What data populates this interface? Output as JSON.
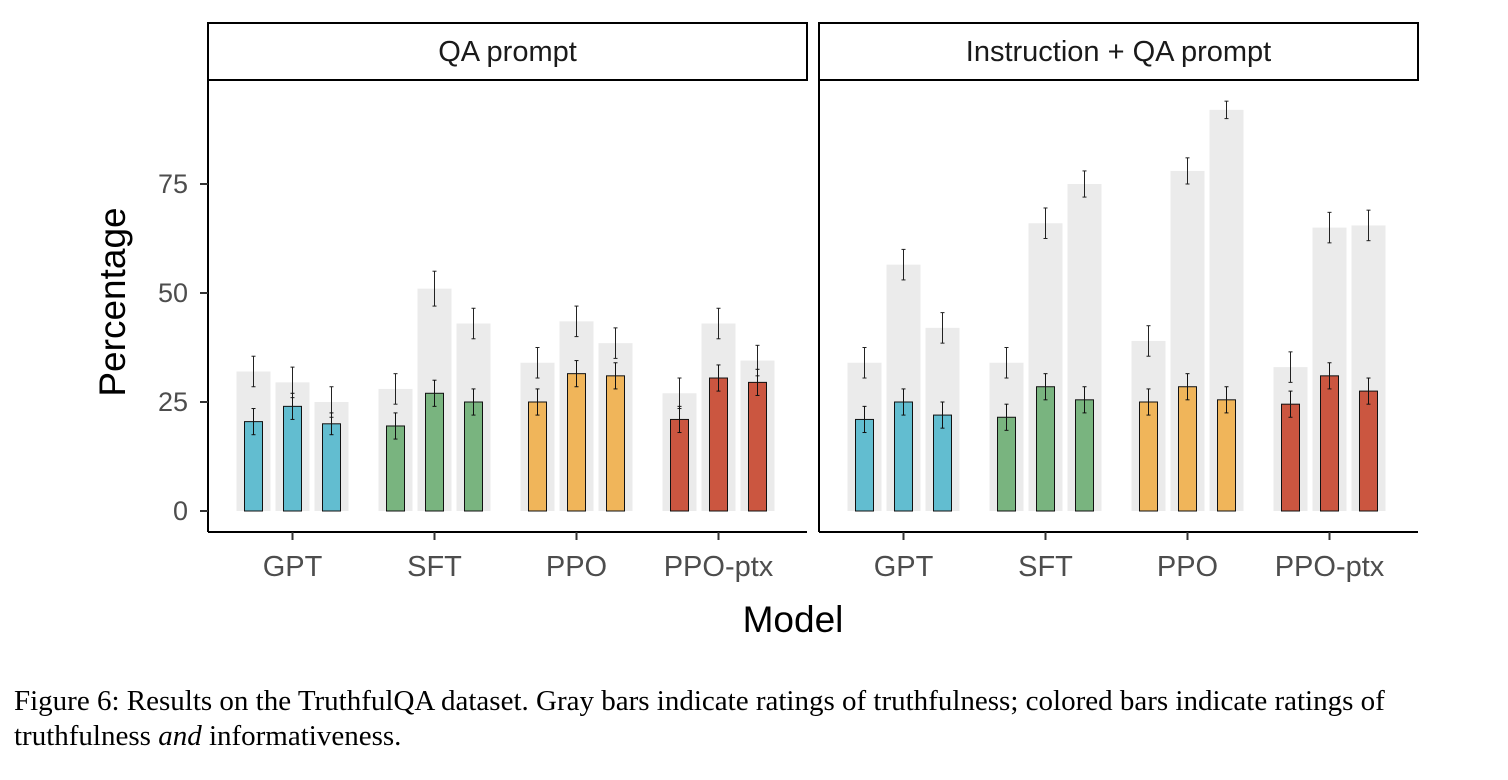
{
  "chart_data": {
    "type": "bar",
    "title": "",
    "xlabel": "Model",
    "ylabel": "Percentage",
    "ylim": [
      0,
      100
    ],
    "yticks": [
      0,
      25,
      50,
      75
    ],
    "categories": [
      "GPT",
      "SFT",
      "PPO",
      "PPO-ptx"
    ],
    "category_colors": {
      "GPT": "#62bdd0",
      "SFT": "#79b47f",
      "PPO": "#f0b55a",
      "PPO-ptx": "#cb5640"
    },
    "gray_bar_color": "#ebebeb",
    "bars_per_category": 3,
    "panels": [
      {
        "title": "QA prompt",
        "series": [
          {
            "name": "Truthfulness",
            "color": "gray",
            "values": {
              "GPT": [
                32,
                29.5,
                25
              ],
              "SFT": [
                28,
                51,
                43
              ],
              "PPO": [
                34,
                43.5,
                38.5
              ],
              "PPO-ptx": [
                27,
                43,
                34.5
              ]
            },
            "errors": {
              "GPT": [
                3.5,
                3.5,
                3.5
              ],
              "SFT": [
                3.5,
                4,
                3.5
              ],
              "PPO": [
                3.5,
                3.5,
                3.5
              ],
              "PPO-ptx": [
                3.5,
                3.5,
                3.5
              ]
            }
          },
          {
            "name": "Truthfulness and informativeness",
            "color": "category",
            "values": {
              "GPT": [
                20.5,
                24,
                20
              ],
              "SFT": [
                19.5,
                27,
                25
              ],
              "PPO": [
                25,
                31.5,
                31
              ],
              "PPO-ptx": [
                21,
                30.5,
                29.5
              ]
            },
            "errors": {
              "GPT": [
                3,
                3,
                2.5
              ],
              "SFT": [
                3,
                3,
                3
              ],
              "PPO": [
                3,
                3,
                3
              ],
              "PPO-ptx": [
                3,
                3,
                3
              ]
            }
          }
        ]
      },
      {
        "title": "Instruction + QA prompt",
        "series": [
          {
            "name": "Truthfulness",
            "color": "gray",
            "values": {
              "GPT": [
                34,
                56.5,
                42
              ],
              "SFT": [
                34,
                66,
                75
              ],
              "PPO": [
                39,
                78,
                92
              ],
              "PPO-ptx": [
                33,
                65,
                65.5
              ]
            },
            "errors": {
              "GPT": [
                3.5,
                3.5,
                3.5
              ],
              "SFT": [
                3.5,
                3.5,
                3
              ],
              "PPO": [
                3.5,
                3,
                2
              ],
              "PPO-ptx": [
                3.5,
                3.5,
                3.5
              ]
            }
          },
          {
            "name": "Truthfulness and informativeness",
            "color": "category",
            "values": {
              "GPT": [
                21,
                25,
                22
              ],
              "SFT": [
                21.5,
                28.5,
                25.5
              ],
              "PPO": [
                25,
                28.5,
                25.5
              ],
              "PPO-ptx": [
                24.5,
                31,
                27.5
              ]
            },
            "errors": {
              "GPT": [
                3,
                3,
                3
              ],
              "SFT": [
                3,
                3,
                3
              ],
              "PPO": [
                3,
                3,
                3
              ],
              "PPO-ptx": [
                3,
                3,
                3
              ]
            }
          }
        ]
      }
    ]
  },
  "caption": {
    "part1": "Figure 6: Results on the TruthfulQA dataset. Gray bars indicate ratings of truthfulness; colored bars indicate ratings of truthfulness ",
    "emphasis": "and",
    "part2": " informativeness."
  }
}
